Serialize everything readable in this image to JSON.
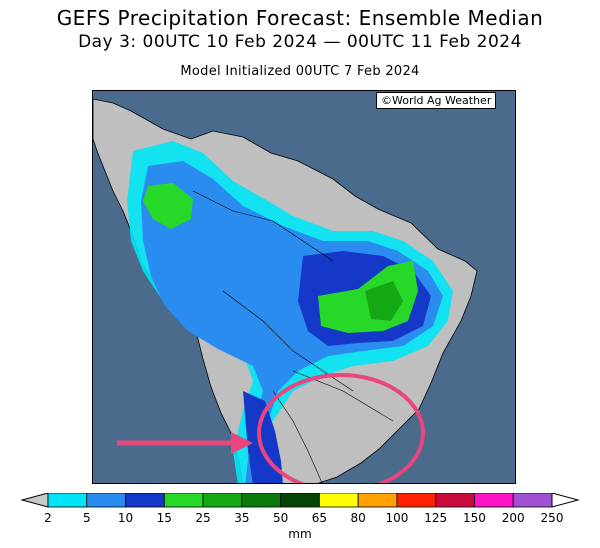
{
  "header": {
    "title": "GEFS Precipitation Forecast: Ensemble Median",
    "valid_period": "Day 3: 00UTC 10 Feb 2024 — 00UTC 11 Feb 2024",
    "init": "Model Initialized 00UTC 7 Feb 2024"
  },
  "map": {
    "credit": "©World Ag Weather",
    "ocean_color": "#4a6b8c",
    "land_color": "#bfbfbf",
    "annotation": {
      "arrow_color": "#e8467c",
      "circle_color": "#e8467c",
      "target": "southern Brazil / Uruguay region"
    }
  },
  "colorbar": {
    "labels": [
      "2",
      "5",
      "10",
      "15",
      "25",
      "35",
      "50",
      "65",
      "80",
      "100",
      "125",
      "150",
      "200",
      "250"
    ],
    "colors": [
      "#00e5f5",
      "#2b8cf0",
      "#1538c9",
      "#28d828",
      "#14a814",
      "#0a7a0a",
      "#044404",
      "#ffff00",
      "#ffa000",
      "#ff2000",
      "#c80a3c",
      "#ff14c8",
      "#a050d2"
    ],
    "under_color": "#c8c8c8",
    "over_color": "#ffffff",
    "units": "mm"
  }
}
